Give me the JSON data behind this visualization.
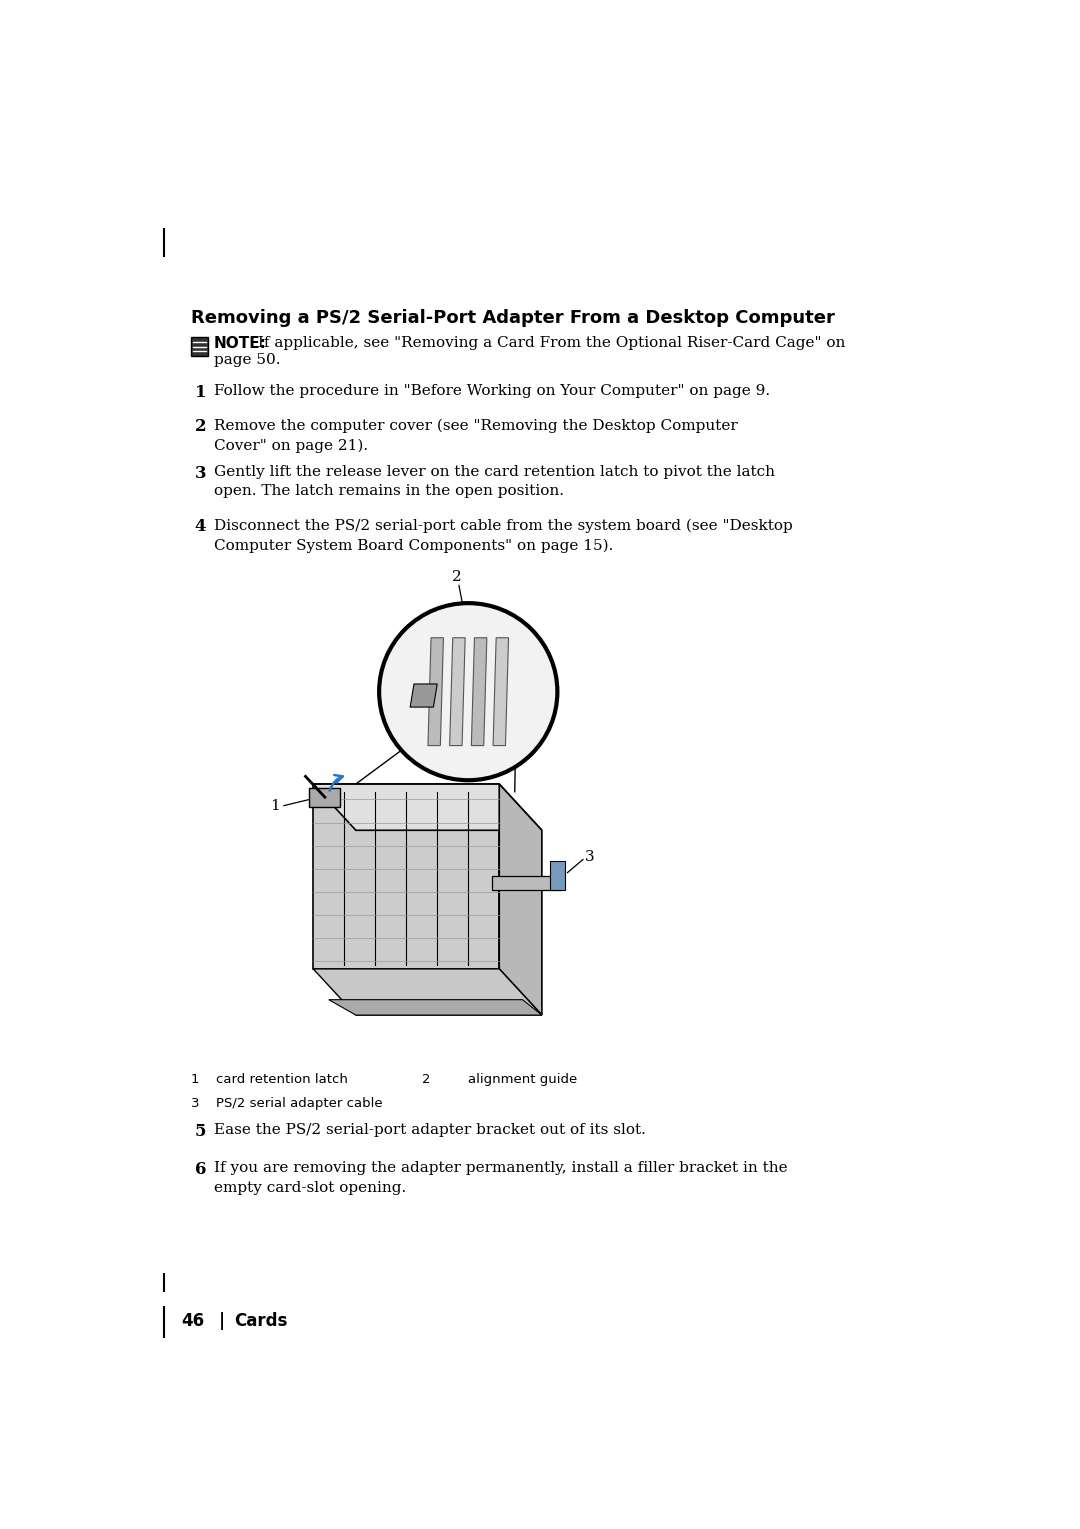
{
  "title": "Removing a PS/2 Serial-Port Adapter From a Desktop Computer",
  "note_bold": "NOTE:",
  "note_text1": " If applicable, see \"Removing a Card From the Optional Riser-Card Cage\" on",
  "note_text2": "page 50.",
  "steps_1_4": [
    {
      "num": "1",
      "text": "Follow the procedure in \"Before Working on Your Computer\" on page 9."
    },
    {
      "num": "2",
      "text": "Remove the computer cover (see \"Removing the Desktop Computer\nCover\" on page 21)."
    },
    {
      "num": "3",
      "text": "Gently lift the release lever on the card retention latch to pivot the latch\nopen. The latch remains in the open position."
    },
    {
      "num": "4",
      "text": "Disconnect the PS/2 serial-port cable from the system board (see \"Desktop\nComputer System Board Components\" on page 15)."
    }
  ],
  "steps_5_6": [
    {
      "num": "5",
      "text": "Ease the PS/2 serial-port adapter bracket out of its slot."
    },
    {
      "num": "6",
      "text": "If you are removing the adapter permanently, install a filler bracket in the\nempty card-slot opening."
    }
  ],
  "callout1_num": "1",
  "callout1_label": "card retention latch",
  "callout2_num": "2",
  "callout2_label": "alignment guide",
  "callout3_num": "3",
  "callout3_label": "PS/2 serial adapter cable",
  "page_num": "46",
  "page_section": "Cards",
  "bg_color": "#ffffff",
  "text_color": "#000000",
  "title_fontsize": 13,
  "body_fontsize": 11,
  "small_fontsize": 9.5
}
